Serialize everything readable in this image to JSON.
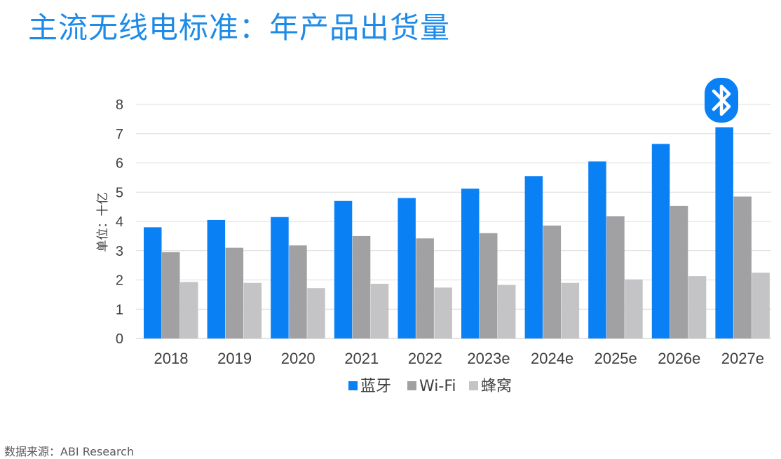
{
  "title": "主流无线电标准：年产品出货量",
  "source": "数据来源：ABI Research",
  "icon": "bluetooth-icon",
  "colors": {
    "title": "#1e8be8",
    "bluetooth": "#0a80f5",
    "wifi": "#a1a1a4",
    "cellular": "#c4c4c6"
  },
  "chart_data": {
    "type": "bar",
    "categories": [
      "2018",
      "2019",
      "2020",
      "2021",
      "2022",
      "2023e",
      "2024e",
      "2025e",
      "2026e",
      "2027e"
    ],
    "series": [
      {
        "name": "蓝牙",
        "values": [
          3.8,
          4.05,
          4.15,
          4.7,
          4.8,
          5.12,
          5.55,
          6.05,
          6.65,
          7.22
        ]
      },
      {
        "name": "Wi-Fi",
        "values": [
          2.95,
          3.1,
          3.18,
          3.5,
          3.42,
          3.6,
          3.86,
          4.18,
          4.53,
          4.85
        ]
      },
      {
        "name": "蜂窝",
        "values": [
          1.93,
          1.9,
          1.72,
          1.87,
          1.74,
          1.83,
          1.9,
          2.02,
          2.13,
          2.25
        ]
      }
    ],
    "yticks": [
      "0",
      "1",
      "2",
      "3",
      "4",
      "5",
      "6",
      "7",
      "8"
    ],
    "ylabel": "单位：十亿",
    "xlabel": "",
    "ylim": [
      0,
      8
    ],
    "grid": true,
    "legend": "bottom"
  }
}
